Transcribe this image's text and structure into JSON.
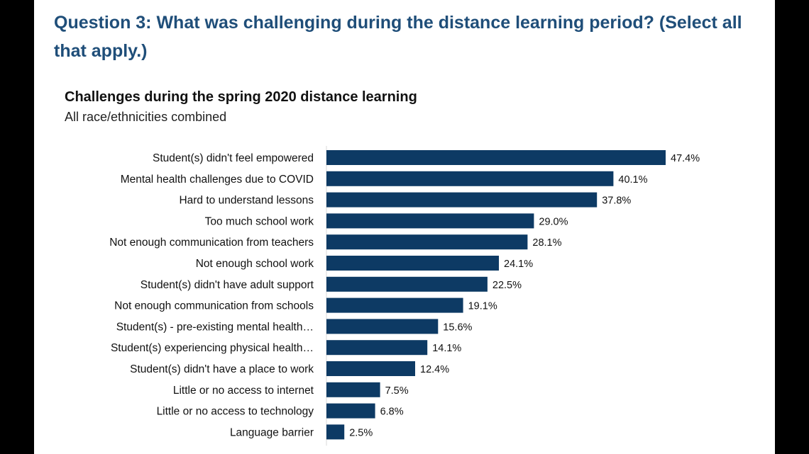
{
  "question": "Question 3: What was challenging during the distance learning period? (Select all that apply.)",
  "colors": {
    "bar": "#0d3a64",
    "question_text": "#1f4e79"
  },
  "chart_data": {
    "type": "bar",
    "orientation": "horizontal",
    "title": "Challenges during the spring 2020 distance learning",
    "subtitle": "All race/ethnicities combined",
    "categories": [
      "Student(s) didn't feel empowered",
      "Mental health challenges due to COVID",
      "Hard to understand lessons",
      "Too much school work",
      "Not enough communication from teachers",
      "Not enough school work",
      "Student(s) didn't have adult support",
      "Not enough communication from schools",
      "Student(s) - pre-existing mental health…",
      "Student(s) experiencing physical health…",
      "Student(s) didn't have a place to work",
      "Little or no access to internet",
      "Little or no access to technology",
      "Language barrier"
    ],
    "values": [
      47.4,
      40.1,
      37.8,
      29.0,
      28.1,
      24.1,
      22.5,
      19.1,
      15.6,
      14.1,
      12.4,
      7.5,
      6.8,
      2.5
    ],
    "value_labels": [
      "47.4%",
      "40.1%",
      "37.8%",
      "29.0%",
      "28.1%",
      "24.1%",
      "22.5%",
      "19.1%",
      "15.6%",
      "14.1%",
      "12.4%",
      "7.5%",
      "6.8%",
      "2.5%"
    ],
    "xlim": [
      0,
      47.4
    ],
    "grid": false,
    "legend": "none"
  }
}
